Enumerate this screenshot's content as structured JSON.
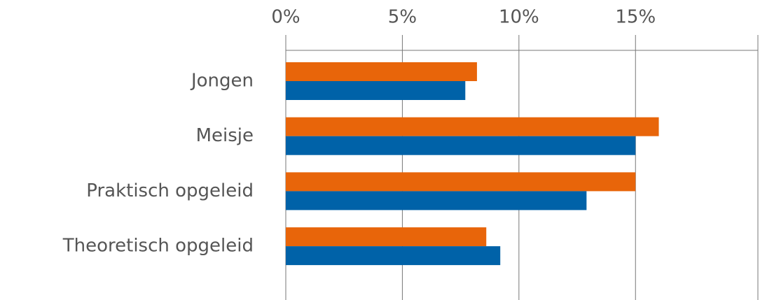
{
  "chart_data": {
    "type": "bar",
    "orientation": "horizontal",
    "categories": [
      "Jongen",
      "Meisje",
      "Praktisch opgeleid",
      "Theoretisch opgeleid"
    ],
    "series": [
      {
        "color": "#e8650a",
        "values": [
          8.2,
          16.0,
          15.0,
          8.6
        ]
      },
      {
        "color": "#0062a8",
        "values": [
          7.7,
          15.0,
          12.9,
          9.2
        ]
      }
    ],
    "xlim": [
      0,
      20.25
    ],
    "xticks": [
      {
        "value": 0,
        "label": "0%"
      },
      {
        "value": 5,
        "label": "5%"
      },
      {
        "value": 10,
        "label": "10%"
      },
      {
        "value": 15,
        "label": "15%"
      }
    ],
    "grid": true
  }
}
